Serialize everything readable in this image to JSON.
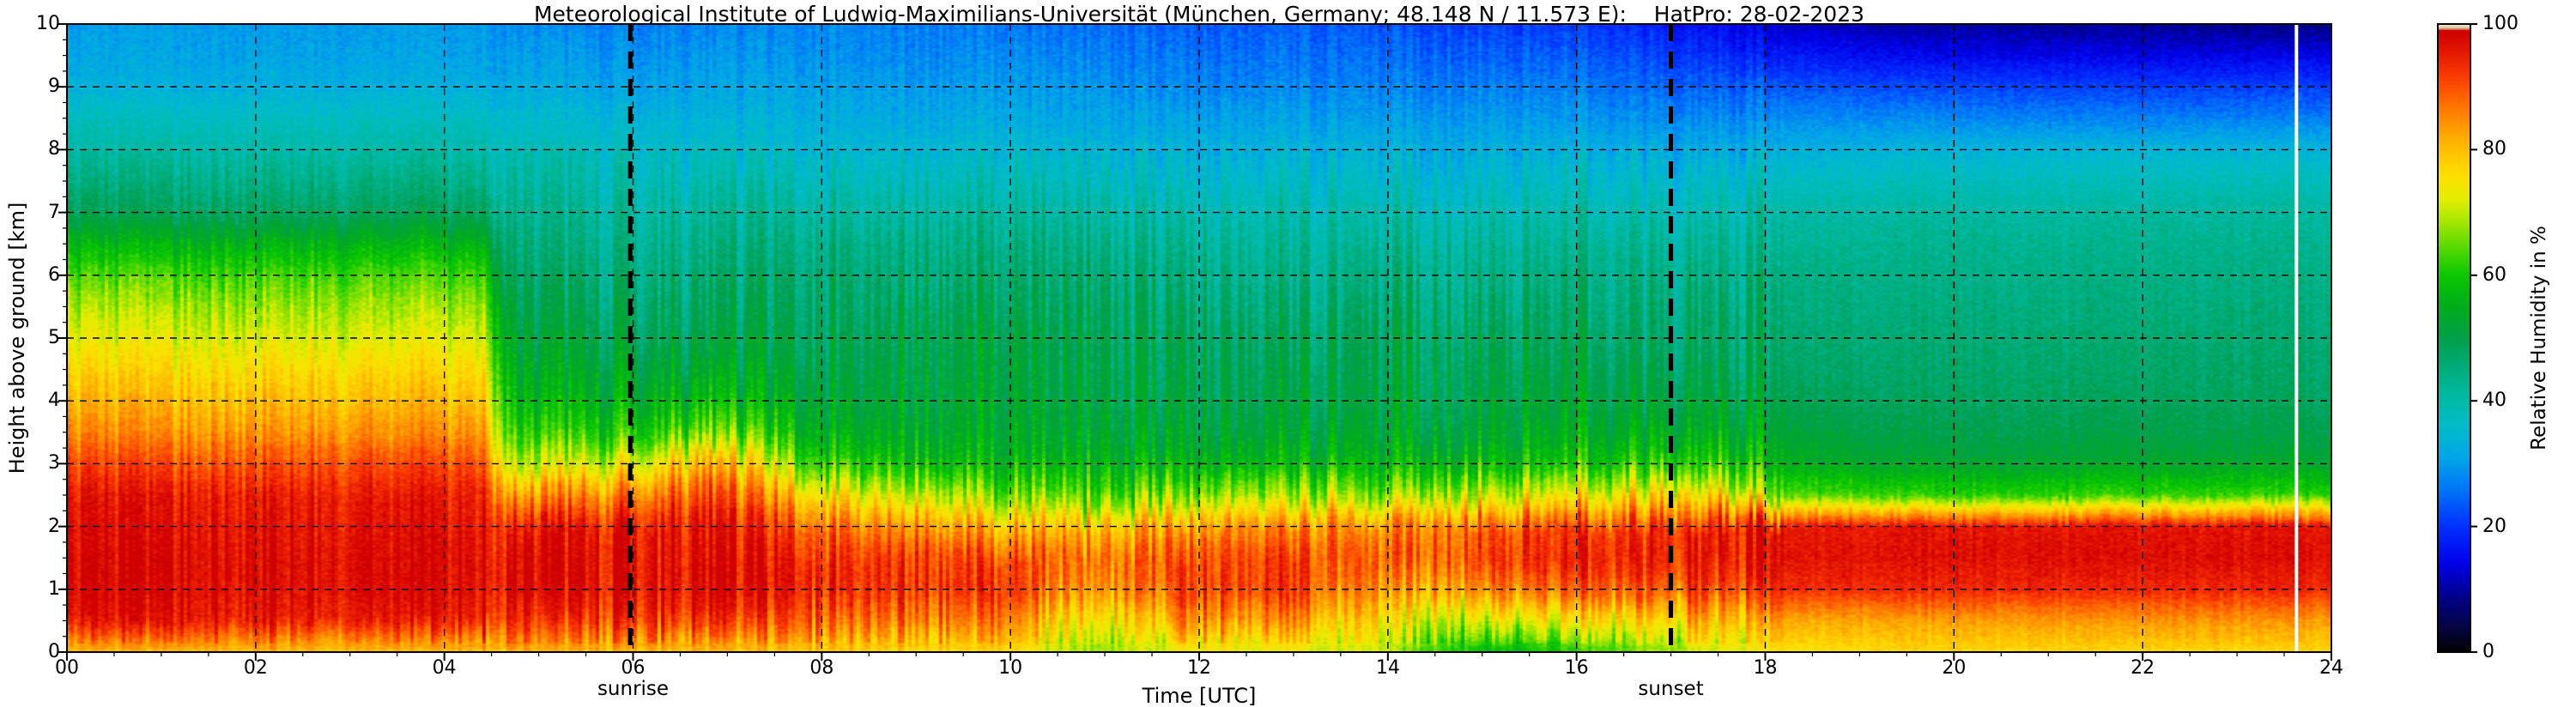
{
  "chart_data": {
    "type": "heatmap",
    "title": "Meteorological Institute of Ludwig-Maximilians-Universität (München, Germany; 48.148 N / 11.573 E):    HatPro: 28-02-2023",
    "xlabel": "Time [UTC]",
    "ylabel": "Height above ground [km]",
    "colorbar_label": "Relative Humidity in %",
    "x_range": [
      0,
      24
    ],
    "y_range": [
      0,
      10
    ],
    "value_range": [
      0,
      100
    ],
    "grid": "dashed-black",
    "x_ticks": [
      {
        "v": 0,
        "label": "00"
      },
      {
        "v": 2,
        "label": "02"
      },
      {
        "v": 4,
        "label": "04"
      },
      {
        "v": 6,
        "label": "06"
      },
      {
        "v": 8,
        "label": "08"
      },
      {
        "v": 10,
        "label": "10"
      },
      {
        "v": 12,
        "label": "12"
      },
      {
        "v": 14,
        "label": "14"
      },
      {
        "v": 16,
        "label": "16"
      },
      {
        "v": 18,
        "label": "18"
      },
      {
        "v": 20,
        "label": "20"
      },
      {
        "v": 22,
        "label": "22"
      },
      {
        "v": 24,
        "label": "24"
      }
    ],
    "y_ticks": [
      {
        "v": 0,
        "label": "0"
      },
      {
        "v": 1,
        "label": "1"
      },
      {
        "v": 2,
        "label": "2"
      },
      {
        "v": 3,
        "label": "3"
      },
      {
        "v": 4,
        "label": "4"
      },
      {
        "v": 5,
        "label": "5"
      },
      {
        "v": 6,
        "label": "6"
      },
      {
        "v": 7,
        "label": "7"
      },
      {
        "v": 8,
        "label": "8"
      },
      {
        "v": 9,
        "label": "9"
      },
      {
        "v": 10,
        "label": "10"
      }
    ],
    "colorbar_ticks": [
      {
        "v": 0,
        "label": "0"
      },
      {
        "v": 20,
        "label": "20"
      },
      {
        "v": 40,
        "label": "40"
      },
      {
        "v": 60,
        "label": "60"
      },
      {
        "v": 80,
        "label": "80"
      },
      {
        "v": 100,
        "label": "100"
      }
    ],
    "x_minor_step": 0.5,
    "y_minor_step": 0.25,
    "sun_events": [
      {
        "label": "sunrise",
        "time": 5.97
      },
      {
        "label": "sunset",
        "time": 17.0
      }
    ],
    "time_marker": {
      "time": 23.63,
      "color": "#ffffff"
    },
    "colormap": [
      [
        0,
        "#000000"
      ],
      [
        4,
        "#050545"
      ],
      [
        9,
        "#00008f"
      ],
      [
        14,
        "#0000e8"
      ],
      [
        20,
        "#0031ff"
      ],
      [
        26,
        "#0077f8"
      ],
      [
        31,
        "#00a6e8"
      ],
      [
        36,
        "#00bcc8"
      ],
      [
        41,
        "#00b9a0"
      ],
      [
        46,
        "#00aa72"
      ],
      [
        50,
        "#009f4a"
      ],
      [
        55,
        "#00ad1c"
      ],
      [
        60,
        "#0ac800"
      ],
      [
        64,
        "#50d800"
      ],
      [
        68,
        "#9ce400"
      ],
      [
        72,
        "#e2ee00"
      ],
      [
        76,
        "#ffdf00"
      ],
      [
        80,
        "#ffbf00"
      ],
      [
        84,
        "#ff9600"
      ],
      [
        88,
        "#ff6800"
      ],
      [
        92,
        "#f93800"
      ],
      [
        96,
        "#e31400"
      ],
      [
        99,
        "#cf0000"
      ],
      [
        99.4,
        "#d8c49a"
      ],
      [
        100,
        "#f2ecd8"
      ]
    ],
    "heights_km": [
      0,
      0.5,
      1,
      1.5,
      2,
      2.5,
      3,
      3.5,
      4,
      4.5,
      5,
      5.5,
      6,
      6.5,
      7,
      7.5,
      8,
      8.5,
      9,
      9.5,
      10
    ],
    "profiles": [
      {
        "t": 0.0,
        "rh": [
          80,
          95,
          97,
          97,
          96,
          95,
          90,
          84,
          80,
          76,
          72,
          68,
          63,
          56,
          48,
          44,
          40,
          37,
          33,
          31,
          30
        ]
      },
      {
        "t": 4.4,
        "rh": [
          80,
          95,
          97,
          97,
          96,
          95,
          90,
          84,
          80,
          76,
          72,
          68,
          63,
          56,
          48,
          44,
          40,
          37,
          33,
          31,
          30
        ]
      },
      {
        "t": 4.75,
        "rh": [
          80,
          91,
          96,
          96,
          94,
          82,
          68,
          60,
          55,
          52,
          50,
          48,
          46,
          44,
          42,
          40,
          38,
          35,
          32,
          30,
          28
        ]
      },
      {
        "t": 6.0,
        "rh": [
          80,
          92,
          96,
          96,
          95,
          86,
          72,
          60,
          55,
          52,
          49,
          47,
          45,
          43,
          41,
          39,
          37,
          34,
          31,
          29,
          27
        ]
      },
      {
        "t": 6.8,
        "rh": [
          80,
          93,
          97,
          96,
          95,
          90,
          80,
          64,
          56,
          52,
          49,
          47,
          45,
          43,
          41,
          38,
          36,
          33,
          31,
          29,
          27
        ]
      },
      {
        "t": 8.0,
        "rh": [
          78,
          88,
          94,
          93,
          88,
          76,
          62,
          55,
          52,
          50,
          48,
          47,
          46,
          44,
          41,
          38,
          35,
          33,
          31,
          29,
          28
        ]
      },
      {
        "t": 9.0,
        "rh": [
          77,
          87,
          93,
          92,
          84,
          70,
          58,
          54,
          52,
          51,
          50,
          48,
          46,
          44,
          41,
          38,
          35,
          32,
          30,
          28,
          27
        ]
      },
      {
        "t": 10.0,
        "rh": [
          76,
          85,
          92,
          90,
          80,
          66,
          56,
          53,
          52,
          51,
          50,
          48,
          46,
          44,
          41,
          38,
          35,
          32,
          30,
          28,
          26
        ]
      },
      {
        "t": 10.9,
        "rh": [
          66,
          72,
          82,
          86,
          78,
          62,
          55,
          52,
          50,
          49,
          48,
          47,
          45,
          43,
          40,
          37,
          34,
          31,
          29,
          27,
          25
        ]
      },
      {
        "t": 12.0,
        "rh": [
          74,
          86,
          93,
          92,
          85,
          68,
          57,
          53,
          51,
          50,
          49,
          47,
          45,
          43,
          40,
          37,
          34,
          31,
          28,
          26,
          24
        ]
      },
      {
        "t": 13.0,
        "rh": [
          72,
          84,
          92,
          92,
          86,
          70,
          58,
          53,
          51,
          50,
          48,
          46,
          44,
          42,
          40,
          37,
          34,
          31,
          28,
          26,
          24
        ]
      },
      {
        "t": 13.9,
        "rh": [
          70,
          75,
          83,
          88,
          84,
          66,
          56,
          52,
          50,
          49,
          48,
          46,
          44,
          42,
          39,
          36,
          33,
          30,
          27,
          25,
          23
        ]
      },
      {
        "t": 15.2,
        "rh": [
          56,
          70,
          85,
          92,
          90,
          72,
          58,
          53,
          51,
          50,
          48,
          46,
          44,
          42,
          39,
          36,
          33,
          30,
          27,
          24,
          21
        ]
      },
      {
        "t": 16.3,
        "rh": [
          62,
          74,
          88,
          94,
          92,
          75,
          60,
          54,
          51,
          49,
          47,
          45,
          44,
          42,
          39,
          36,
          33,
          29,
          26,
          23,
          20
        ]
      },
      {
        "t": 17.3,
        "rh": [
          70,
          79,
          90,
          95,
          94,
          78,
          62,
          55,
          51,
          49,
          47,
          46,
          44,
          42,
          39,
          36,
          32,
          28,
          24,
          20,
          16
        ]
      },
      {
        "t": 18.2,
        "rh": [
          75,
          82,
          93,
          96,
          95,
          64,
          55,
          52,
          49,
          47,
          46,
          45,
          44,
          42,
          40,
          37,
          33,
          28,
          23,
          17,
          12
        ]
      },
      {
        "t": 19.5,
        "rh": [
          77,
          83,
          94,
          97,
          96,
          62,
          53,
          50,
          48,
          47,
          46,
          45,
          44,
          43,
          41,
          38,
          34,
          28,
          22,
          15,
          10
        ]
      },
      {
        "t": 22.0,
        "rh": [
          77,
          84,
          94,
          97,
          96,
          62,
          53,
          50,
          48,
          47,
          46,
          45,
          44,
          43,
          41,
          38,
          34,
          27,
          21,
          14,
          9
        ]
      },
      {
        "t": 24.0,
        "rh": [
          77,
          84,
          94,
          97,
          96,
          62,
          53,
          50,
          48,
          47,
          46,
          45,
          44,
          43,
          41,
          38,
          34,
          27,
          21,
          14,
          8
        ]
      }
    ],
    "noise": {
      "night_amplitude": 3.5,
      "day_amplitude": 5.5,
      "evening_amplitude": 1.2,
      "day_start": 4.4,
      "day_end": 18.2,
      "texture": 2.0,
      "height_jitter_km": 0.2
    }
  }
}
